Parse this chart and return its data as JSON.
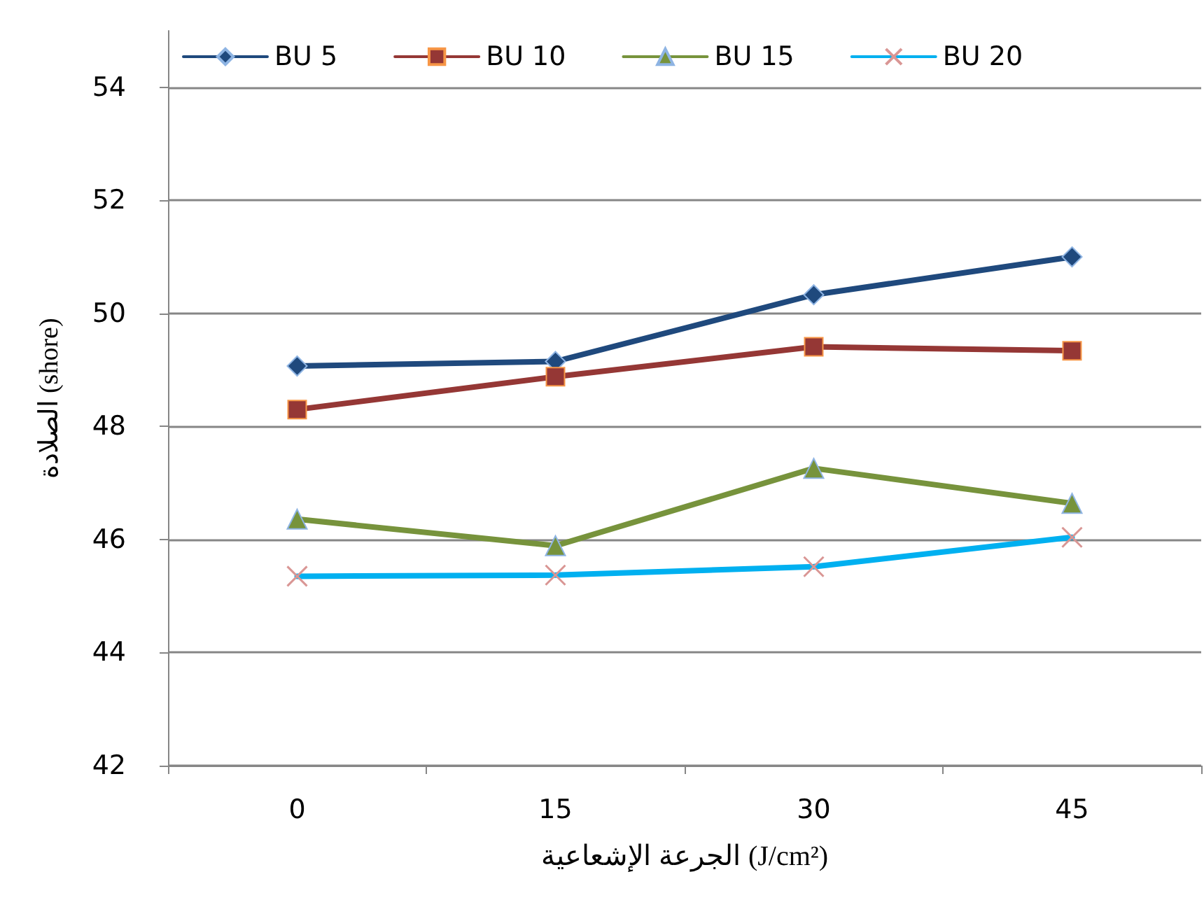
{
  "chart_data": {
    "type": "line",
    "xlabel": "الجرعة الإشعاعية (J/cm²)",
    "ylabel": "الصلادة (shore)",
    "categories": [
      "0",
      "15",
      "30",
      "45"
    ],
    "series": [
      {
        "name": "BU 5",
        "color": "#1f497d",
        "marker": "diamond",
        "values": [
          49.07,
          49.15,
          50.33,
          51.0
        ]
      },
      {
        "name": "BU 10",
        "color": "#953735",
        "marker": "square",
        "values": [
          48.3,
          48.88,
          49.41,
          49.34
        ]
      },
      {
        "name": "BU 15",
        "color": "#77933c",
        "marker": "triangle",
        "values": [
          46.36,
          45.89,
          47.26,
          46.64
        ]
      },
      {
        "name": "BU 20",
        "color": "#00b0f0",
        "marker": "cross",
        "values": [
          45.35,
          45.37,
          45.52,
          46.04
        ]
      }
    ],
    "ylim": [
      42,
      55
    ],
    "yticks": [
      42,
      44,
      46,
      48,
      50,
      52,
      54
    ],
    "grid": "y",
    "legend": "top",
    "line_style": "solid"
  }
}
